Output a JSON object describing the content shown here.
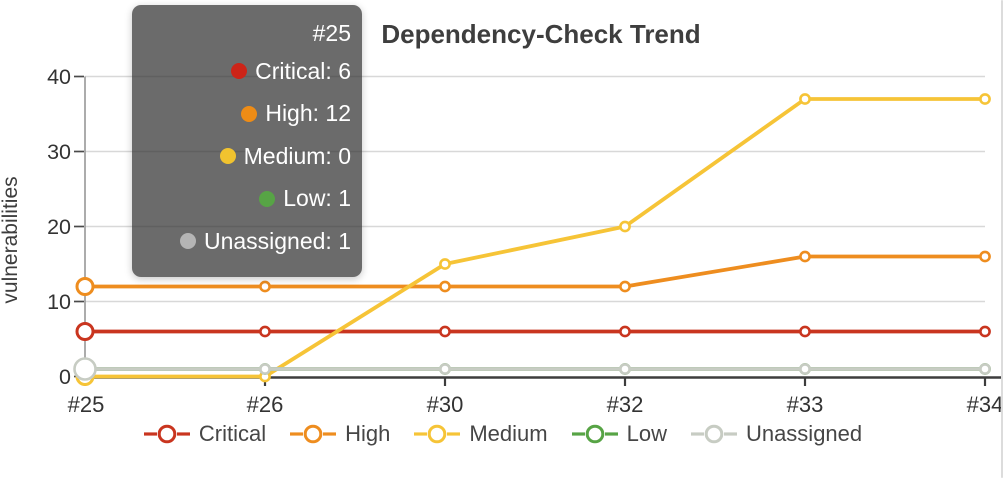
{
  "title": "Dependency-Check Trend",
  "tooltip": {
    "title": "#25",
    "bg": "rgba(50,50,50,0.72)",
    "rows": [
      {
        "label": "Critical",
        "value": 6,
        "color": "#cc2418"
      },
      {
        "label": "High",
        "value": 12,
        "color": "#ee8c16"
      },
      {
        "label": "Medium",
        "value": 0,
        "color": "#f1c32f"
      },
      {
        "label": "Low",
        "value": 1,
        "color": "#57a445"
      },
      {
        "label": "Unassigned",
        "value": 1,
        "color": "#b5b5b5"
      }
    ]
  },
  "chart_data": {
    "type": "line",
    "title": "Dependency-Check Trend",
    "xlabel": "",
    "ylabel": "vulnerabilities",
    "categories": [
      "#25",
      "#26",
      "#30",
      "#32",
      "#33",
      "#34"
    ],
    "series": [
      {
        "name": "Critical",
        "color": "#c9351f",
        "values": [
          6,
          6,
          6,
          6,
          6,
          6
        ]
      },
      {
        "name": "High",
        "color": "#ee8d1f",
        "values": [
          12,
          12,
          12,
          12,
          16,
          16
        ]
      },
      {
        "name": "Medium",
        "color": "#f6c437",
        "values": [
          0,
          0,
          15,
          20,
          37,
          37
        ]
      },
      {
        "name": "Low",
        "color": "#57a445",
        "values": [
          1,
          1,
          1,
          1,
          1,
          1
        ]
      },
      {
        "name": "Unassigned",
        "color": "#c7ccc3",
        "values": [
          1,
          1,
          1,
          1,
          1,
          1
        ]
      }
    ],
    "ylim": [
      0,
      40
    ],
    "yticks": [
      0,
      10,
      20,
      30,
      40
    ],
    "grid": true,
    "legend_position": "bottom",
    "hovered_category": "#25",
    "hover_index": 0,
    "axis_colors": {
      "grid": "#d8d8d8",
      "y_axis": "#9e9e9e",
      "x_axis": "#3d3d3d",
      "tick_text": "#333333"
    },
    "marker_style": "open-circle"
  }
}
